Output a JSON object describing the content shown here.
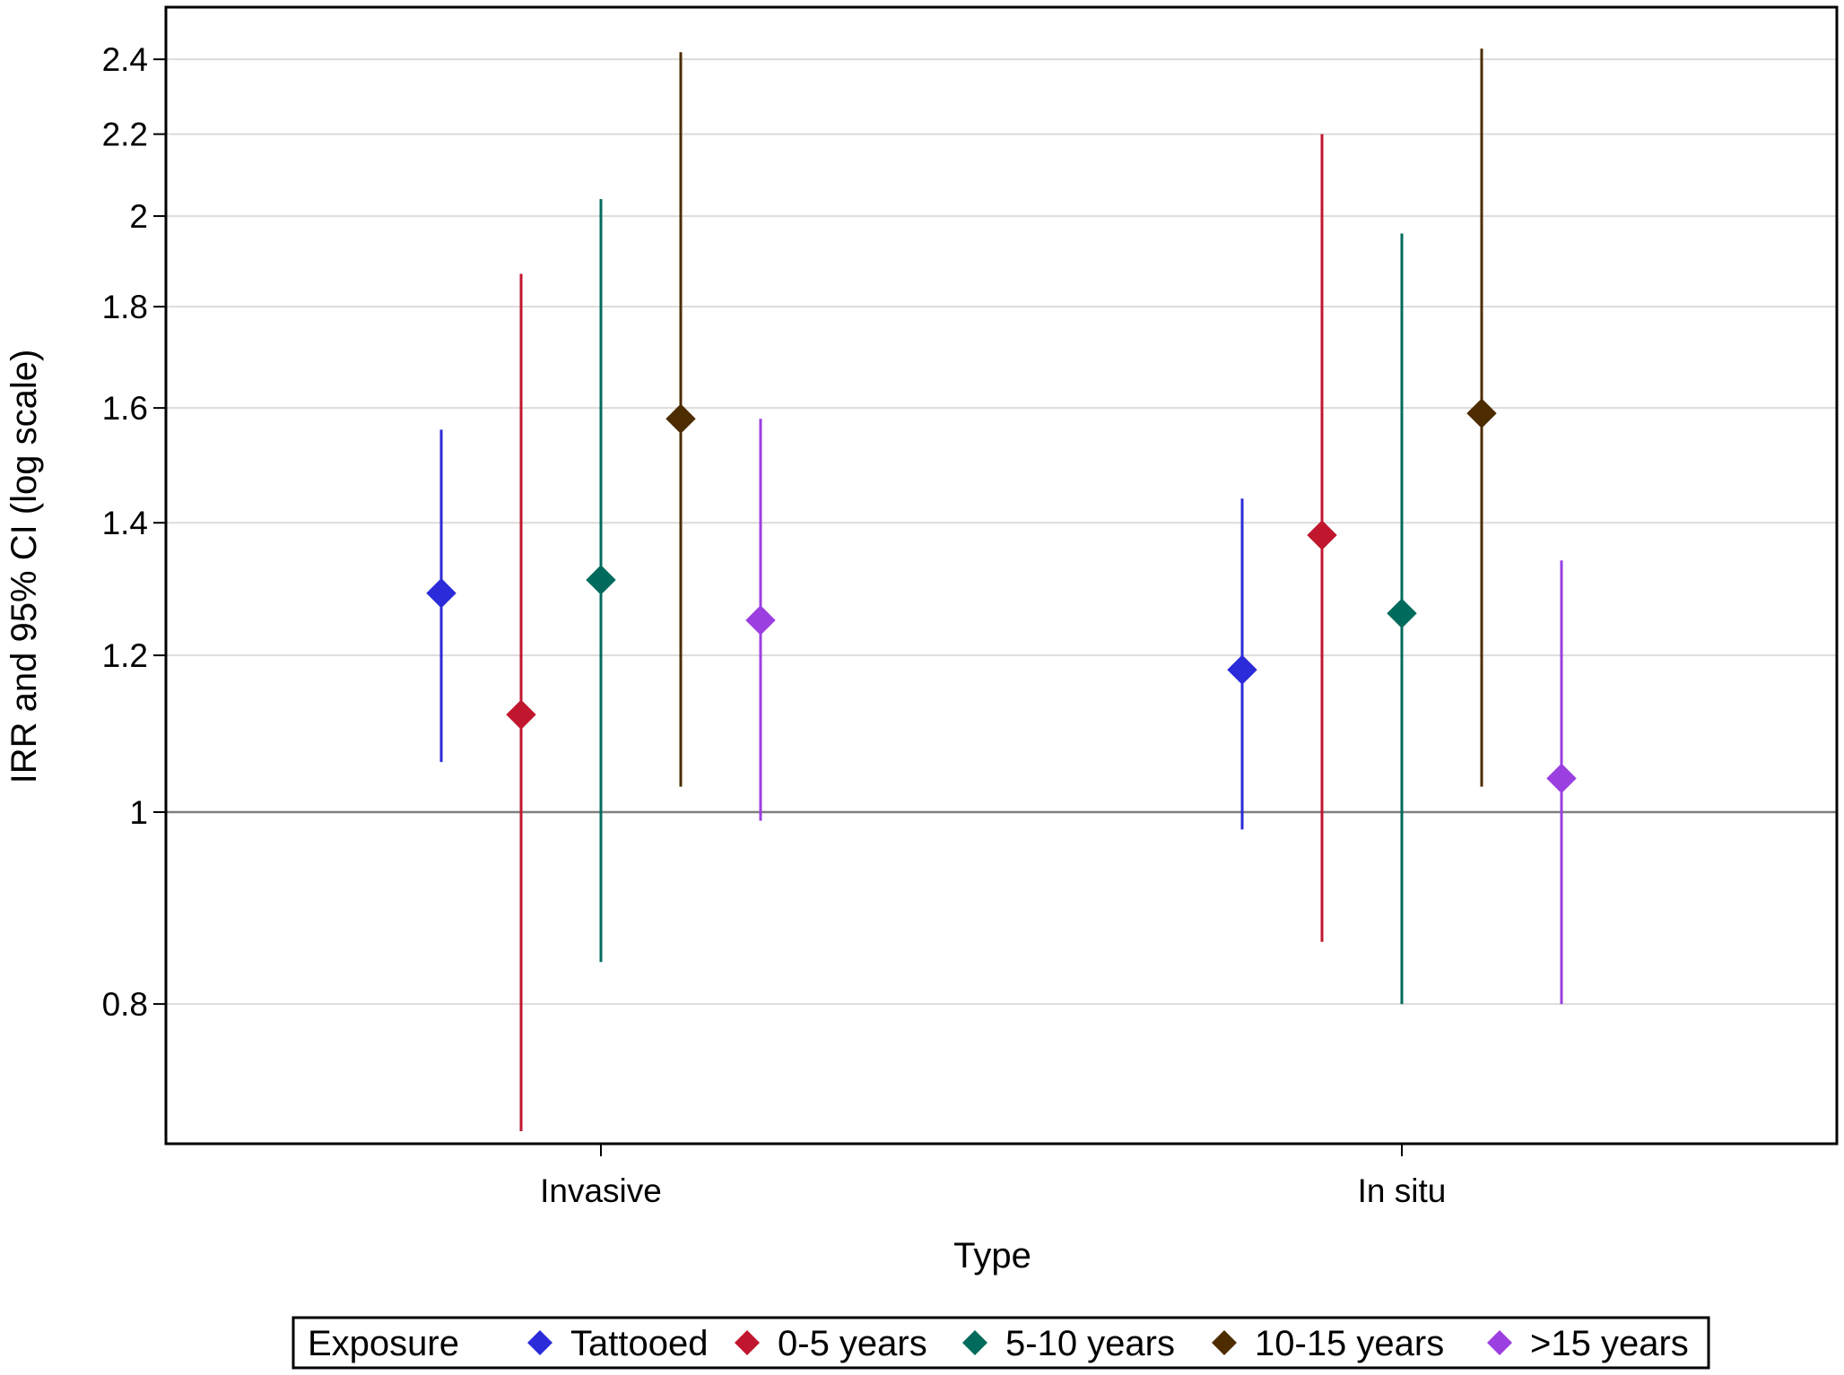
{
  "chart_data": {
    "type": "scatter",
    "title": "",
    "xlabel": "Type",
    "ylabel": "IRR and 95% CI (log scale)",
    "yscale": "log",
    "ylim": [
      0.68,
      2.55
    ],
    "yticks": [
      0.8,
      1,
      1.2,
      1.4,
      1.6,
      1.8,
      2,
      2.2,
      2.4
    ],
    "ytick_labels": [
      "0.8",
      "1",
      "1.2",
      "1.4",
      "1.6",
      "1.8",
      "2",
      "2.2",
      "2.4"
    ],
    "reference_line": 1,
    "grid": "horizontal",
    "categories": [
      "Invasive",
      "In situ"
    ],
    "legend": {
      "title": "Exposure",
      "position": "bottom"
    },
    "series": [
      {
        "name": "Tattooed",
        "color": "#2b2bd9",
        "values": [
          1.29,
          1.18
        ],
        "lower": [
          1.06,
          0.98
        ],
        "upper": [
          1.56,
          1.44
        ]
      },
      {
        "name": "0-5 years",
        "color": "#c0172f",
        "values": [
          1.12,
          1.38
        ],
        "lower": [
          0.69,
          0.86
        ],
        "upper": [
          1.87,
          2.2
        ]
      },
      {
        "name": "5-10 years",
        "color": "#006b5c",
        "values": [
          1.31,
          1.26
        ],
        "lower": [
          0.84,
          0.8
        ],
        "upper": [
          2.04,
          1.96
        ]
      },
      {
        "name": "10-15 years",
        "color": "#4d2c00",
        "values": [
          1.58,
          1.59
        ],
        "lower": [
          1.03,
          1.03
        ],
        "upper": [
          2.42,
          2.43
        ]
      },
      {
        "name": ">15 years",
        "color": "#9b3fe0",
        "values": [
          1.25,
          1.04
        ],
        "lower": [
          0.99,
          0.8
        ],
        "upper": [
          1.58,
          1.34
        ]
      }
    ]
  }
}
